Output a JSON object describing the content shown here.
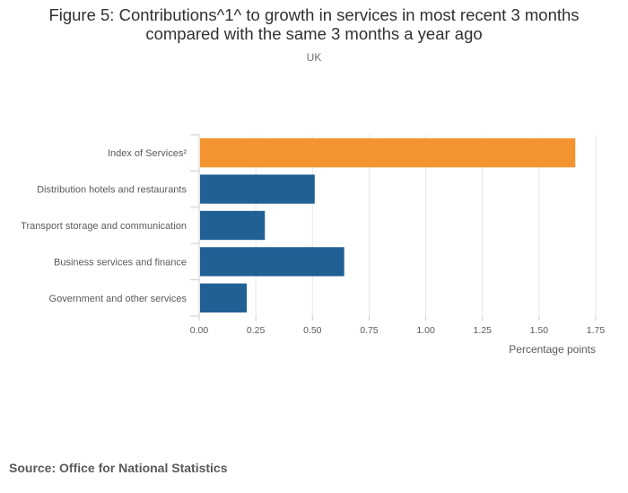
{
  "chart_data": {
    "type": "bar",
    "orientation": "horizontal",
    "title": "Figure 5: Contributions^1^ to growth in services in most recent 3 months compared with the same 3 months a year ago",
    "subtitle": "UK",
    "xlabel": "Percentage points",
    "ylabel": "",
    "categories": [
      "Index of Services²",
      "Distribution hotels and restaurants",
      "Transport storage and communication",
      "Business services and finance",
      "Government and other services"
    ],
    "values": [
      1.66,
      0.51,
      0.29,
      0.64,
      0.21
    ],
    "bar_colors": [
      "#f39431",
      "#206095",
      "#206095",
      "#206095",
      "#206095"
    ],
    "xlim": [
      0,
      1.75
    ],
    "xticks": [
      "0.00",
      "0.25",
      "0.50",
      "0.75",
      "1.00",
      "1.25",
      "1.50",
      "1.75"
    ],
    "grid": true,
    "legend": "none"
  },
  "title_line1": "Figure 5: Contributions^1^ to growth in services in most recent 3 months",
  "title_line2": "compared with the same 3 months a year ago",
  "source": "Source: Office for National Statistics"
}
